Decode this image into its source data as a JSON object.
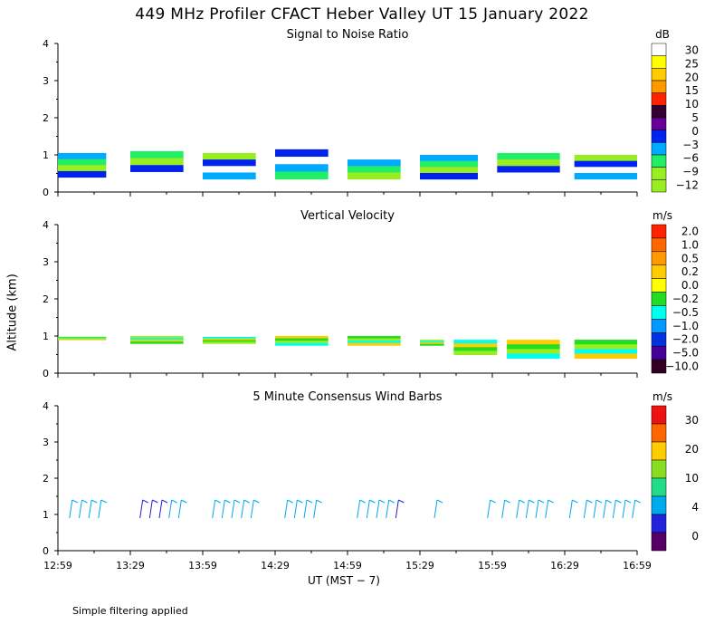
{
  "title": "449 MHz Profiler CFACT Heber Valley UT 15 January 2022",
  "ylabel": "Altitude (km)",
  "xunits": "UT  (MST − 7)",
  "footnote": "Simple filtering applied",
  "chart_data": [
    {
      "type": "heatmap",
      "title": "Signal to Noise Ratio",
      "units": "dB",
      "x_ticks": [
        "12:59",
        "13:29",
        "13:59",
        "14:29",
        "14:59",
        "15:29",
        "15:59",
        "16:29",
        "16:59"
      ],
      "ylim": [
        0,
        4
      ],
      "y_ticks": [
        "0",
        "1",
        "2",
        "3",
        "4"
      ],
      "colorbar_labels": [
        "30",
        "25",
        "20",
        "15",
        "10",
        "5",
        "0",
        "−3",
        "−6",
        "−9",
        "−12"
      ],
      "colorbar_colors": [
        "#ffffff",
        "#ffff00",
        "#ffcc00",
        "#ff9900",
        "#ff2200",
        "#330033",
        "#660099",
        "#0022ee",
        "#00aaff",
        "#22ee66",
        "#99ee22",
        "#99ee22"
      ],
      "blocks": [
        {
          "t0": 0,
          "t1": 0.5,
          "bottom": 0.4,
          "top": 1.05
        },
        {
          "t0": 0.75,
          "t1": 1.3,
          "bottom": 0.35,
          "top": 1.1
        },
        {
          "t0": 1.5,
          "t1": 2.05,
          "bottom": 0.35,
          "top": 1.05
        },
        {
          "t0": 2.25,
          "t1": 2.8,
          "bottom": 0.35,
          "top": 1.15
        },
        {
          "t0": 3.0,
          "t1": 3.55,
          "bottom": 0.35,
          "top": 1.05
        },
        {
          "t0": 3.75,
          "t1": 4.35,
          "bottom": 0.35,
          "top": 1.0
        },
        {
          "t0": 4.55,
          "t1": 5.2,
          "bottom": 0.35,
          "top": 1.05
        },
        {
          "t0": 5.35,
          "t1": 6.0,
          "bottom": 0.35,
          "top": 1.0
        }
      ]
    },
    {
      "type": "heatmap",
      "title": "Vertical Velocity",
      "units": "m/s",
      "x_ticks": [
        "12:59",
        "13:29",
        "13:59",
        "14:29",
        "14:59",
        "15:29",
        "15:59",
        "16:29",
        "16:59"
      ],
      "ylim": [
        0,
        4
      ],
      "y_ticks": [
        "0",
        "1",
        "2",
        "3",
        "4"
      ],
      "colorbar_labels": [
        "2.0",
        "1.0",
        "0.5",
        "0.2",
        "0.0",
        "−0.2",
        "−0.5",
        "−1.0",
        "−2.0",
        "−5.0",
        "−10.0"
      ],
      "colorbar_colors": [
        "#ff2200",
        "#ff6600",
        "#ff9900",
        "#ffcc00",
        "#ffff00",
        "#22dd22",
        "#00ffee",
        "#0099ff",
        "#0033dd",
        "#440099",
        "#330022"
      ],
      "blocks": [
        {
          "t0": 0,
          "t1": 0.5,
          "bottom": 0.9,
          "top": 0.98
        },
        {
          "t0": 0.75,
          "t1": 1.3,
          "bottom": 0.8,
          "top": 1.0
        },
        {
          "t0": 1.5,
          "t1": 2.05,
          "bottom": 0.8,
          "top": 0.98
        },
        {
          "t0": 2.25,
          "t1": 2.8,
          "bottom": 0.75,
          "top": 1.0
        },
        {
          "t0": 3.0,
          "t1": 3.55,
          "bottom": 0.75,
          "top": 1.0
        },
        {
          "t0": 3.75,
          "t1": 4.0,
          "bottom": 0.75,
          "top": 0.9
        },
        {
          "t0": 4.1,
          "t1": 4.55,
          "bottom": 0.5,
          "top": 0.9
        },
        {
          "t0": 4.65,
          "t1": 5.2,
          "bottom": 0.4,
          "top": 0.9
        },
        {
          "t0": 5.35,
          "t1": 6.0,
          "bottom": 0.4,
          "top": 0.9
        }
      ]
    },
    {
      "type": "scatter",
      "title": "5 Minute Consensus Wind Barbs",
      "units": "m/s",
      "x_ticks": [
        "12:59",
        "13:29",
        "13:59",
        "14:29",
        "14:59",
        "15:29",
        "15:59",
        "16:29",
        "16:59"
      ],
      "ylim": [
        0,
        4
      ],
      "y_ticks": [
        "0",
        "1",
        "2",
        "3",
        "4"
      ],
      "colorbar_labels": [
        "30",
        "20",
        "10",
        "4",
        "0"
      ],
      "colorbar_colors": [
        "#ee1111",
        "#ff6600",
        "#ffcc00",
        "#88dd22",
        "#22dd88",
        "#00aaee",
        "#2222dd",
        "#550066"
      ],
      "barbs": [
        {
          "t": 0.12,
          "alt": 0.9,
          "speed": 6
        },
        {
          "t": 0.22,
          "alt": 0.9,
          "speed": 6
        },
        {
          "t": 0.32,
          "alt": 0.9,
          "speed": 6
        },
        {
          "t": 0.42,
          "alt": 0.9,
          "speed": 6
        },
        {
          "t": 0.85,
          "alt": 0.9,
          "speed": 3
        },
        {
          "t": 0.95,
          "alt": 0.9,
          "speed": 3
        },
        {
          "t": 1.05,
          "alt": 0.9,
          "speed": 3
        },
        {
          "t": 1.15,
          "alt": 0.9,
          "speed": 6
        },
        {
          "t": 1.25,
          "alt": 0.9,
          "speed": 6
        },
        {
          "t": 1.6,
          "alt": 0.9,
          "speed": 6
        },
        {
          "t": 1.7,
          "alt": 0.9,
          "speed": 6
        },
        {
          "t": 1.8,
          "alt": 0.9,
          "speed": 6
        },
        {
          "t": 1.9,
          "alt": 0.9,
          "speed": 6
        },
        {
          "t": 2.0,
          "alt": 0.9,
          "speed": 6
        },
        {
          "t": 2.35,
          "alt": 0.9,
          "speed": 6
        },
        {
          "t": 2.45,
          "alt": 0.9,
          "speed": 6
        },
        {
          "t": 2.55,
          "alt": 0.9,
          "speed": 6
        },
        {
          "t": 2.65,
          "alt": 0.9,
          "speed": 6
        },
        {
          "t": 3.1,
          "alt": 0.9,
          "speed": 6
        },
        {
          "t": 3.2,
          "alt": 0.9,
          "speed": 6
        },
        {
          "t": 3.3,
          "alt": 0.9,
          "speed": 6
        },
        {
          "t": 3.4,
          "alt": 0.9,
          "speed": 6
        },
        {
          "t": 3.5,
          "alt": 0.9,
          "speed": 3
        },
        {
          "t": 3.9,
          "alt": 0.9,
          "speed": 6
        },
        {
          "t": 4.45,
          "alt": 0.9,
          "speed": 6
        },
        {
          "t": 4.6,
          "alt": 0.9,
          "speed": 6
        },
        {
          "t": 4.75,
          "alt": 0.9,
          "speed": 6
        },
        {
          "t": 4.85,
          "alt": 0.9,
          "speed": 6
        },
        {
          "t": 4.95,
          "alt": 0.9,
          "speed": 6
        },
        {
          "t": 5.05,
          "alt": 0.9,
          "speed": 6
        },
        {
          "t": 5.3,
          "alt": 0.9,
          "speed": 6
        },
        {
          "t": 5.45,
          "alt": 0.9,
          "speed": 6
        },
        {
          "t": 5.55,
          "alt": 0.9,
          "speed": 6
        },
        {
          "t": 5.65,
          "alt": 0.9,
          "speed": 6
        },
        {
          "t": 5.75,
          "alt": 0.9,
          "speed": 6
        },
        {
          "t": 5.85,
          "alt": 0.9,
          "speed": 6
        },
        {
          "t": 5.95,
          "alt": 0.9,
          "speed": 6
        }
      ]
    }
  ]
}
